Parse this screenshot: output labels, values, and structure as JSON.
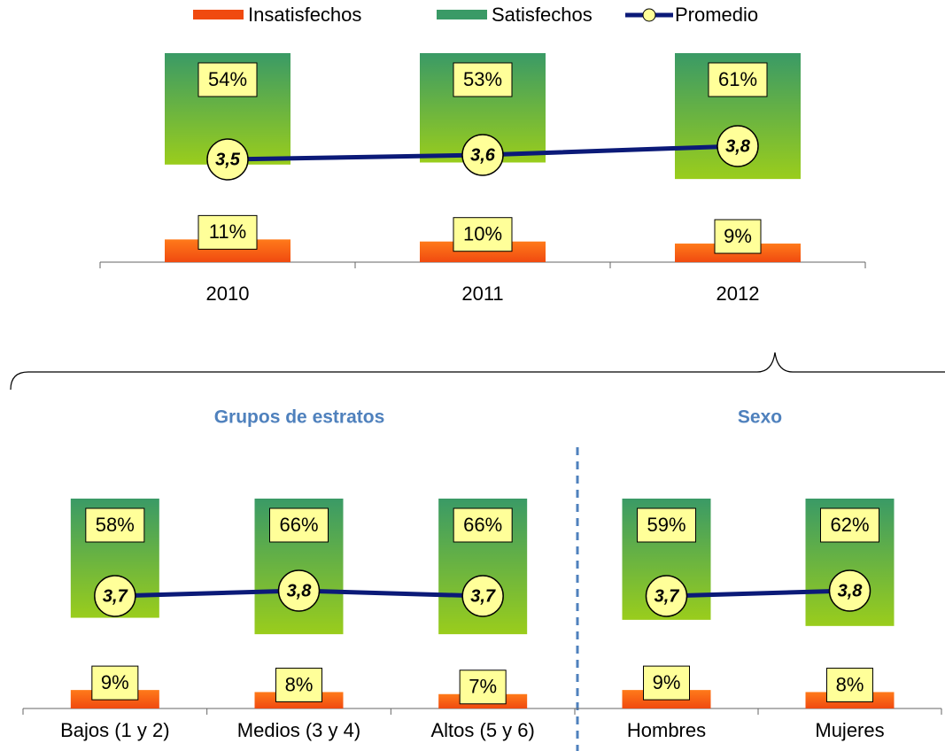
{
  "chart_data": [
    {
      "type": "bar-line",
      "categories": [
        "2010",
        "2011",
        "2012"
      ],
      "series": [
        {
          "name": "Insatisfechos",
          "color": "#f04a10",
          "values": [
            11,
            10,
            9
          ],
          "value_labels": [
            "11%",
            "10%",
            "9%"
          ]
        },
        {
          "name": "Satisfechos",
          "color": "#3a9a66",
          "values": [
            54,
            53,
            61
          ],
          "value_labels": [
            "54%",
            "53%",
            "61%"
          ]
        },
        {
          "name": "Promedio",
          "color": "#0b1a78",
          "values": [
            3.5,
            3.6,
            3.8
          ],
          "value_labels": [
            "3,5",
            "3,6",
            "3,8"
          ]
        }
      ]
    },
    {
      "type": "bar-line",
      "title": "Grupos de estratos",
      "categories": [
        "Bajos (1 y 2)",
        "Medios (3 y 4)",
        "Altos (5 y 6)"
      ],
      "series": [
        {
          "color": "#f04a10",
          "values": [
            9,
            8,
            7
          ],
          "value_labels": [
            "9%",
            "8%",
            "7%"
          ]
        },
        {
          "color": "#3a9a66",
          "values": [
            58,
            66,
            66
          ],
          "value_labels": [
            "58%",
            "66%",
            "66%"
          ]
        },
        {
          "color": "#0b1a78",
          "values": [
            3.7,
            3.8,
            3.7
          ],
          "value_labels": [
            "3,7",
            "3,8",
            "3,7"
          ]
        }
      ]
    },
    {
      "type": "bar-line",
      "title": "Sexo",
      "categories": [
        "Hombres",
        "Mujeres"
      ],
      "series": [
        {
          "color": "#f04a10",
          "values": [
            9,
            8
          ],
          "value_labels": [
            "9%",
            "8%"
          ]
        },
        {
          "color": "#3a9a66",
          "values": [
            59,
            62
          ],
          "value_labels": [
            "59%",
            "62%"
          ]
        },
        {
          "color": "#0b1a78",
          "values": [
            3.7,
            3.8
          ],
          "value_labels": [
            "3,7",
            "3,8"
          ]
        }
      ]
    }
  ]
}
